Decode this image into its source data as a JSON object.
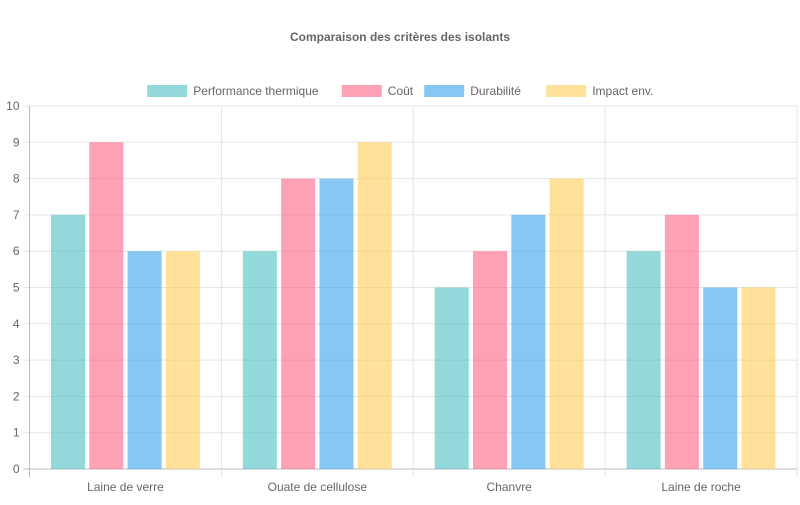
{
  "chart_data": {
    "type": "bar",
    "title": "Comparaison des critères des isolants",
    "categories": [
      "Laine de verre",
      "Ouate de cellulose",
      "Chanvre",
      "Laine de roche"
    ],
    "series": [
      {
        "name": "Performance thermique",
        "values": [
          7,
          6,
          5,
          6
        ],
        "color": "#4bc0c0"
      },
      {
        "name": "Coût",
        "values": [
          9,
          8,
          6,
          7
        ],
        "color": "#ff6384"
      },
      {
        "name": "Durabilité",
        "values": [
          6,
          8,
          7,
          5
        ],
        "color": "#36a2eb"
      },
      {
        "name": "Impact env.",
        "values": [
          6,
          9,
          8,
          5
        ],
        "color": "#ffcd56"
      }
    ],
    "ylim": [
      0,
      10
    ],
    "yticks": [
      0,
      1,
      2,
      3,
      4,
      5,
      6,
      7,
      8,
      9,
      10
    ],
    "grid": true,
    "legend": "top",
    "xlabel": "",
    "ylabel": ""
  }
}
